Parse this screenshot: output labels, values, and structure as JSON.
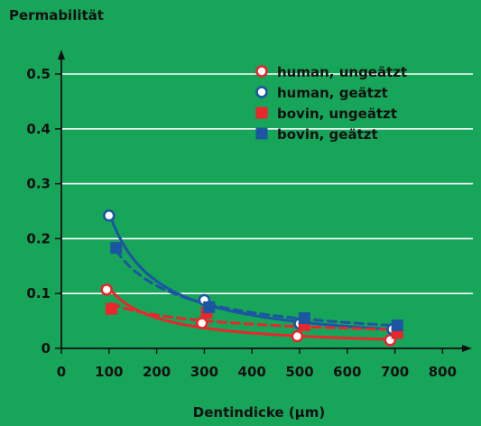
{
  "chart_data": {
    "type": "scatter",
    "ylabel": "Permabilität",
    "xlabel": "Dentindicke (µm)",
    "xlim": [
      0,
      800
    ],
    "ylim": [
      0,
      0.5
    ],
    "x_ticks": [
      "0",
      "100",
      "200",
      "300",
      "400",
      "500",
      "600",
      "700",
      "800"
    ],
    "y_ticks": [
      "0",
      "0.1",
      "0.2",
      "0.3",
      "0.4",
      "0.5"
    ],
    "grid": "horizontal",
    "legend_position": "top-right",
    "series": [
      {
        "name": "human, ungeätzt",
        "marker": "circle-open",
        "color": "#e8262c",
        "line": "solid",
        "points": [
          [
            95,
            0.107
          ],
          [
            295,
            0.046
          ],
          [
            495,
            0.022
          ],
          [
            690,
            0.015
          ]
        ]
      },
      {
        "name": "human, geätzt",
        "marker": "circle-open",
        "color": "#1c55a1",
        "line": "solid",
        "points": [
          [
            100,
            0.242
          ],
          [
            300,
            0.088
          ],
          [
            500,
            0.045
          ],
          [
            695,
            0.035
          ]
        ]
      },
      {
        "name": "bovin, ungeätzt",
        "marker": "square",
        "color": "#e8262c",
        "line": "dashed",
        "points": [
          [
            105,
            0.072
          ],
          [
            305,
            0.065
          ],
          [
            510,
            0.042
          ],
          [
            705,
            0.028
          ]
        ]
      },
      {
        "name": "bovin, geätzt",
        "marker": "square",
        "color": "#1c55a1",
        "line": "dashed",
        "points": [
          [
            115,
            0.183
          ],
          [
            310,
            0.075
          ],
          [
            510,
            0.055
          ],
          [
            705,
            0.042
          ]
        ]
      }
    ]
  }
}
